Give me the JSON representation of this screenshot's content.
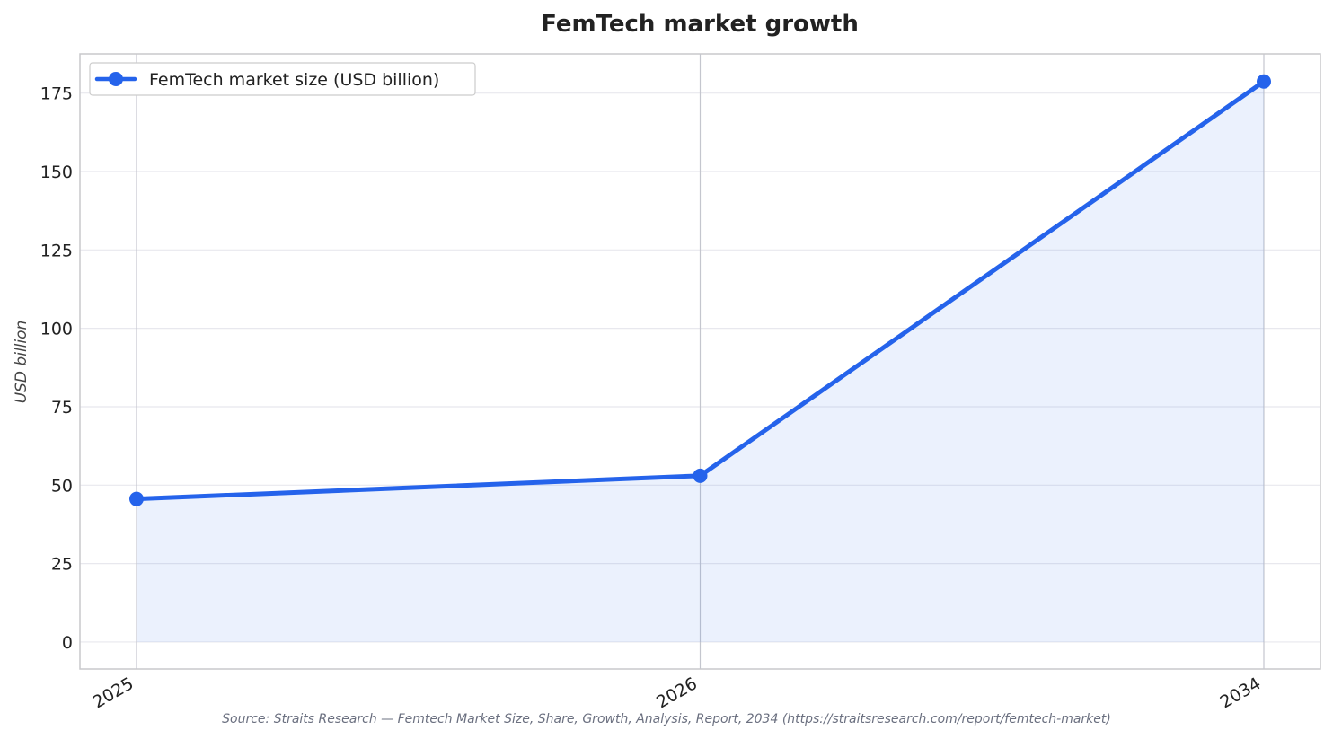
{
  "chart_data": {
    "type": "area",
    "title": "FemTech market growth",
    "xlabel": "",
    "ylabel": "USD billion",
    "categories": [
      "2025",
      "2026",
      "2034"
    ],
    "series": [
      {
        "name": "FemTech market size (USD billion)",
        "values": [
          45.6,
          53.0,
          178.7
        ],
        "color": "#2563eb",
        "fill_color": "#2563eb"
      }
    ],
    "ylim": [
      -8.6,
      187.5
    ],
    "yticks": [
      0,
      25,
      50,
      75,
      100,
      125,
      150,
      175
    ],
    "grid": true,
    "legend_position": "top-left"
  },
  "source": "Source: Straits Research — Femtech Market Size, Share, Growth, Analysis, Report, 2034 (https://straitsresearch.com/report/femtech-market)"
}
